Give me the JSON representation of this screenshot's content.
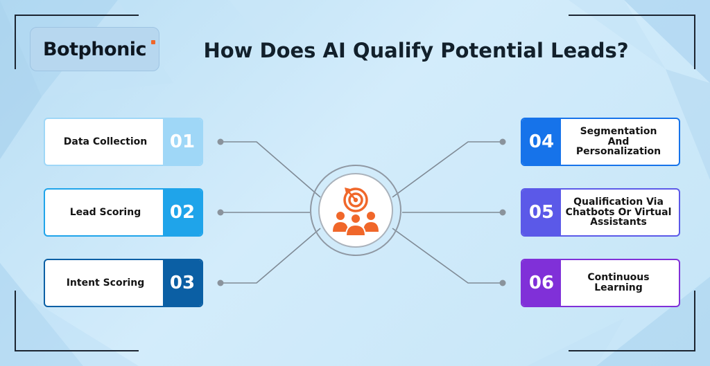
{
  "brand": {
    "name": "Botphonic",
    "accent": "#f0672a"
  },
  "title": "How Does AI Qualify Potential Leads?",
  "center_icon": "target-audience-icon",
  "steps": [
    {
      "number": "01",
      "label": "Data Collection",
      "color": "#9fd7f7"
    },
    {
      "number": "02",
      "label": "Lead Scoring",
      "color": "#1fa4ea"
    },
    {
      "number": "03",
      "label": "Intent Scoring",
      "color": "#0b5fa4"
    },
    {
      "number": "04",
      "label": "Segmentation And Personalization",
      "color": "#1673ea"
    },
    {
      "number": "05",
      "label": "Qualification Via Chatbots Or Virtual Assistants",
      "color": "#5b59e8"
    },
    {
      "number": "06",
      "label": "Continuous Learning",
      "color": "#8030d8"
    }
  ]
}
